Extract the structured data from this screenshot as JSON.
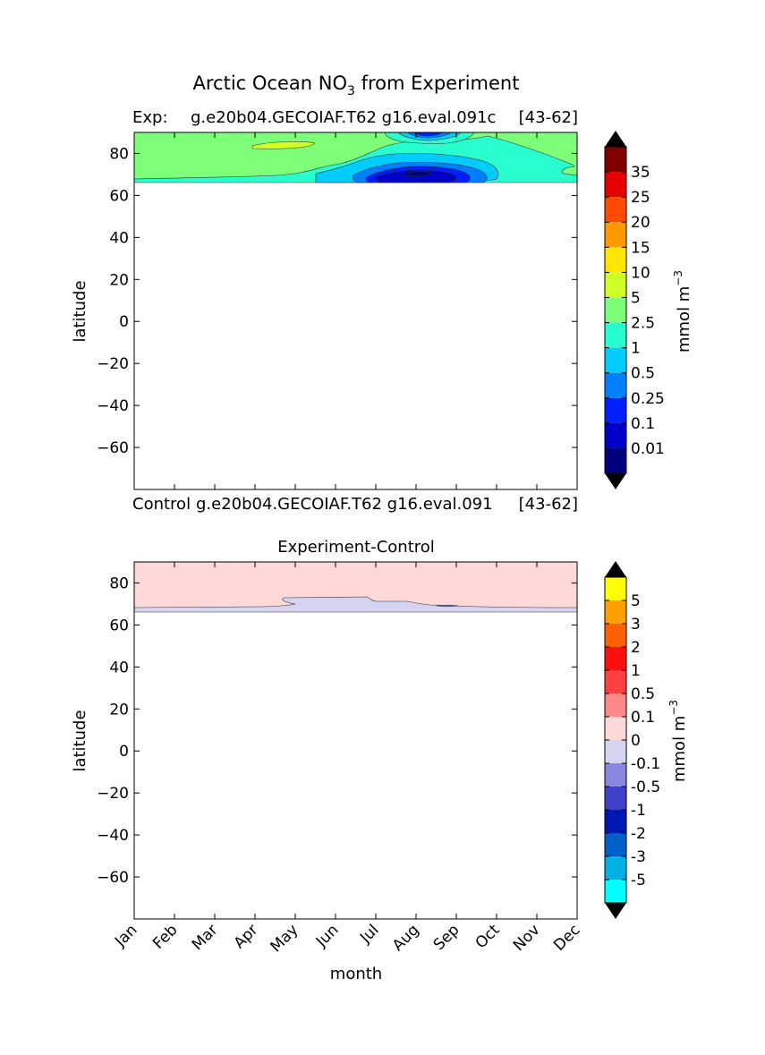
{
  "figure": {
    "title_main": "Arctic Ocean NO",
    "title_sub": "3",
    "title_rest": " from Experiment"
  },
  "panel1": {
    "left_label": "Exp:",
    "center_label": "g.e20b04.GECOIAF.T62 g16.eval.091c",
    "right_label": "[43-62]",
    "bottom_left_label": "Control",
    "bottom_center_label": "g.e20b04.GECOIAF.T62 g16.eval.091",
    "bottom_right_label": "[43-62]",
    "ylabel": "latitude",
    "colorbar_label": "mmol m",
    "colorbar_label_sup": "−3"
  },
  "panel2": {
    "title": "Experiment-Control",
    "ylabel": "latitude",
    "xlabel": "month",
    "colorbar_label": "mmol m",
    "colorbar_label_sup": "−3"
  },
  "chart_data": [
    {
      "type": "heatmap",
      "subtype": "filled-contour",
      "ylabel": "latitude",
      "ylim": [
        -80,
        90
      ],
      "yticks": [
        80,
        60,
        40,
        20,
        0,
        -20,
        -40,
        -60
      ],
      "ytick_labels": [
        "80",
        "60",
        "40",
        "20",
        "0",
        "−20",
        "−40",
        "−60"
      ],
      "xlim": [
        0,
        11
      ],
      "data_lat_range": [
        66,
        90
      ],
      "colorbar": {
        "levels": [
          "0.01",
          "0.1",
          "0.25",
          "0.5",
          "1",
          "2.5",
          "5",
          "10",
          "15",
          "20",
          "25",
          "35"
        ],
        "colors": [
          "#00007f",
          "#0000c8",
          "#0020ff",
          "#0080ff",
          "#00ccff",
          "#29ffce",
          "#7dff7a",
          "#ceff29",
          "#ffe600",
          "#ff9900",
          "#ff4a00",
          "#e40000",
          "#7f0000"
        ],
        "extend": "both"
      },
      "regions": [
        {
          "desc": "background",
          "color": "#7dff7a"
        },
        {
          "desc": "band 66-70 latitude (0-2.5)",
          "color": "#29ffce"
        },
        {
          "desc": "summer minimum core",
          "color": "#0000c8"
        }
      ]
    },
    {
      "type": "heatmap",
      "subtype": "filled-contour",
      "ylabel": "latitude",
      "xlabel": "month",
      "ylim": [
        -80,
        90
      ],
      "yticks": [
        80,
        60,
        40,
        20,
        0,
        -20,
        -40,
        -60
      ],
      "ytick_labels": [
        "80",
        "60",
        "40",
        "20",
        "0",
        "−20",
        "−40",
        "−60"
      ],
      "categories": [
        "Jan",
        "Feb",
        "Mar",
        "Apr",
        "May",
        "Jun",
        "Jul",
        "Aug",
        "Sep",
        "Oct",
        "Nov",
        "Dec"
      ],
      "data_lat_range": [
        66,
        90
      ],
      "colorbar": {
        "levels": [
          "-5",
          "-3",
          "-2",
          "-1",
          "-0.5",
          "-0.1",
          "0",
          "0.1",
          "0.5",
          "1",
          "2",
          "3",
          "5"
        ],
        "colors": [
          "#00ffff",
          "#00b0e0",
          "#0060c8",
          "#0018b0",
          "#4040c8",
          "#8888e0",
          "#d4d4f0",
          "#ffd8d8",
          "#ff8888",
          "#ff4040",
          "#ff1010",
          "#ff6000",
          "#ffa000",
          "#ffff00"
        ],
        "extend": "both"
      }
    }
  ]
}
